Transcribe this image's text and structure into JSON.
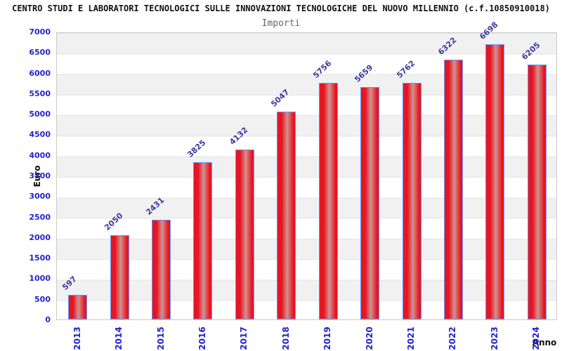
{
  "header": {
    "title": "CENTRO STUDI E LABORATORI TECNOLOGICI SULLE INNOVAZIONI TECNOLOGICHE DEL NUOVO MILLENNIO (c.f.10850910018)",
    "subtitle": "Importi"
  },
  "chart_data": {
    "type": "bar",
    "title": "CENTRO STUDI E LABORATORI TECNOLOGICI SULLE INNOVAZIONI TECNOLOGICHE DEL NUOVO MILLENNIO (c.f.10850910018)",
    "subtitle": "Importi",
    "categories": [
      "2013",
      "2014",
      "2015",
      "2016",
      "2017",
      "2018",
      "2019",
      "2020",
      "2021",
      "2022",
      "2023",
      "2024"
    ],
    "values": [
      597,
      2050,
      2431,
      3825,
      4132,
      5047,
      5756,
      5659,
      5762,
      6322,
      6698,
      6205
    ],
    "xlabel": "Anno",
    "ylabel": "Euro",
    "ylim": [
      0,
      7000
    ],
    "ytick_step": 500,
    "y_ticks": [
      "0",
      "500",
      "1000",
      "1500",
      "2000",
      "2500",
      "3000",
      "3500",
      "4000",
      "4500",
      "5000",
      "5500",
      "6000",
      "6500",
      "7000"
    ],
    "grid": "horizontal-bands-alternating",
    "legend": "none",
    "colors": {
      "bar_fill": "#e91421",
      "bar_fill_center": "#cf9390",
      "bar_border": "#5b9bff",
      "value_label": "#3a3aa0",
      "tick_label": "#2323cd",
      "axis_title": "#111111",
      "title": "#111111",
      "subtitle": "#666666",
      "band_gray": "#f1f1f1",
      "band_white": "#ffffff",
      "plot_border": "#c9c9c9"
    }
  }
}
